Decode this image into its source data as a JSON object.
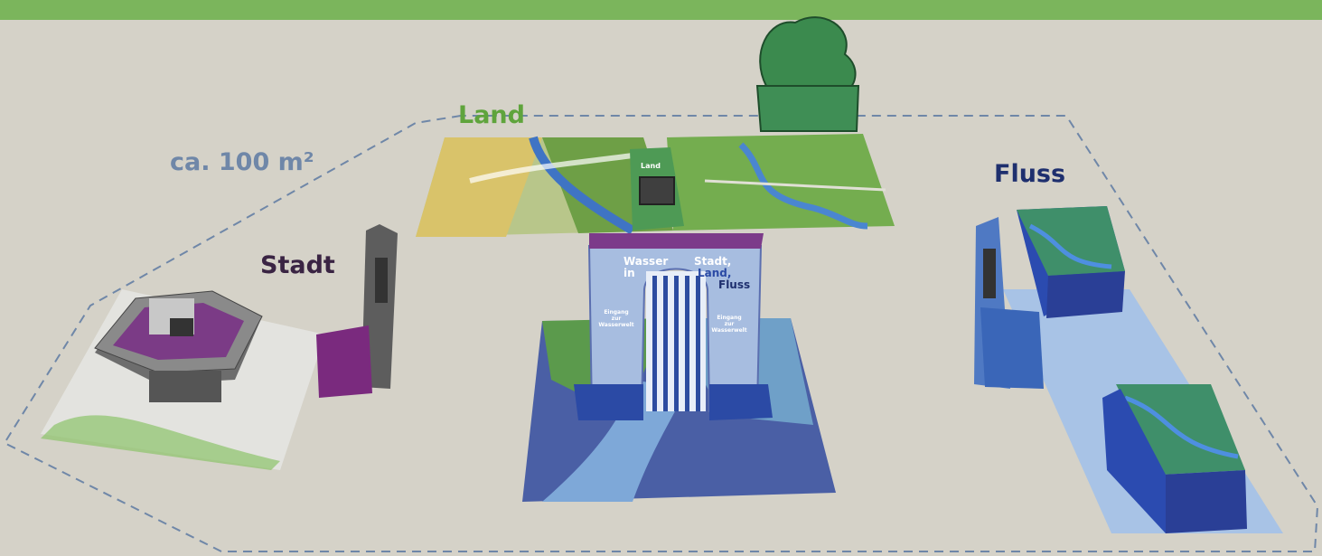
{
  "labels": {
    "area": "ca. 100 m²",
    "land": "Land",
    "stadt": "Stadt",
    "fluss": "Fluss"
  },
  "gate": {
    "left_text": "Wasser in",
    "right_text_1": "Stadt,",
    "right_text_2": "Land,",
    "right_text_3": "Fluss",
    "entrance_left": "Eingang zur Wasserwelt",
    "entrance_right": "Eingang zur Wasserwelt"
  },
  "kiosk": {
    "land_label": "Land"
  },
  "colors": {
    "topbar": "#7bb55c",
    "background": "#d5d2c8",
    "outline": "#6f87a8",
    "land": "#5fa43c",
    "stadt": "#3a2443",
    "fluss": "#1e2f6e"
  }
}
